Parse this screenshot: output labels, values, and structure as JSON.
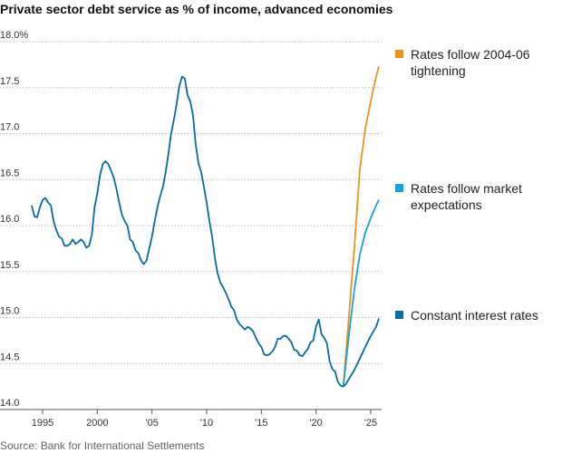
{
  "chart_data": {
    "type": "line",
    "title": "Private sector debt service as % of income, advanced economies",
    "source": "Source: Bank for International Settlements",
    "xlim": [
      1991.1,
      2026.0
    ],
    "xticks": [
      1995,
      2000,
      {
        "value": 2005,
        "label": "'05"
      },
      {
        "value": 2010,
        "label": "'10"
      },
      {
        "value": 2015,
        "label": "'15"
      },
      {
        "value": 2020,
        "label": "'20"
      },
      {
        "value": 2025,
        "label": "'25"
      }
    ],
    "ylim": [
      14,
      18
    ],
    "yticks": [
      {
        "value": 18,
        "label": "18.0%"
      },
      17.5,
      {
        "value": 17,
        "label": "17.0"
      },
      16.5,
      {
        "value": 16,
        "label": "16.0"
      },
      15.5,
      {
        "value": 15,
        "label": "15.0"
      },
      14.5,
      {
        "value": 14,
        "label": "14.0"
      }
    ],
    "grid": true,
    "series": [
      {
        "name": "Rates follow 2004-06 tightening",
        "color": "#e8951f",
        "x": [
          2022.5,
          2023.0,
          2023.5,
          2024.0,
          2024.5,
          2025.0,
          2025.5,
          2025.75
        ],
        "values": [
          14.25,
          15.0,
          15.75,
          16.6,
          17.05,
          17.35,
          17.62,
          17.73
        ]
      },
      {
        "name": "Rates follow market expectations",
        "color": "#1aa0dc",
        "x": [
          2022.5,
          2023.0,
          2023.5,
          2024.0,
          2024.5,
          2025.0,
          2025.5,
          2025.75
        ],
        "values": [
          14.25,
          14.8,
          15.3,
          15.68,
          15.92,
          16.08,
          16.22,
          16.28
        ]
      },
      {
        "name": "Constant interest rates",
        "color": "#0b6aa2",
        "x": [
          1994.0,
          1994.25,
          1994.5,
          1994.75,
          1995.0,
          1995.25,
          1995.5,
          1995.75,
          1996.0,
          1996.25,
          1996.5,
          1996.75,
          1997.0,
          1997.25,
          1997.5,
          1997.75,
          1998.0,
          1998.25,
          1998.5,
          1998.75,
          1999.0,
          1999.25,
          1999.5,
          1999.75,
          2000.0,
          2000.25,
          2000.5,
          2000.75,
          2001.0,
          2001.25,
          2001.5,
          2001.75,
          2002.0,
          2002.25,
          2002.5,
          2002.75,
          2003.0,
          2003.25,
          2003.5,
          2003.75,
          2004.0,
          2004.25,
          2004.5,
          2004.75,
          2005.0,
          2005.25,
          2005.5,
          2005.75,
          2006.0,
          2006.25,
          2006.5,
          2006.75,
          2007.0,
          2007.25,
          2007.5,
          2007.75,
          2008.0,
          2008.25,
          2008.5,
          2008.75,
          2009.0,
          2009.25,
          2009.5,
          2009.75,
          2010.0,
          2010.25,
          2010.5,
          2010.75,
          2011.0,
          2011.25,
          2011.5,
          2011.75,
          2012.0,
          2012.25,
          2012.5,
          2012.75,
          2013.0,
          2013.25,
          2013.5,
          2013.75,
          2014.0,
          2014.25,
          2014.5,
          2014.75,
          2015.0,
          2015.25,
          2015.5,
          2015.75,
          2016.0,
          2016.25,
          2016.5,
          2016.75,
          2017.0,
          2017.25,
          2017.5,
          2017.75,
          2018.0,
          2018.25,
          2018.5,
          2018.75,
          2019.0,
          2019.25,
          2019.5,
          2019.75,
          2020.0,
          2020.25,
          2020.5,
          2020.75,
          2021.0,
          2021.25,
          2021.5,
          2021.75,
          2022.0,
          2022.25,
          2022.5,
          2022.75,
          2023.0,
          2023.5,
          2024.0,
          2024.5,
          2025.0,
          2025.5,
          2025.75
        ],
        "values": [
          16.22,
          16.1,
          16.09,
          16.2,
          16.28,
          16.3,
          16.25,
          16.22,
          16.05,
          15.95,
          15.88,
          15.86,
          15.78,
          15.78,
          15.8,
          15.85,
          15.8,
          15.82,
          15.85,
          15.82,
          15.76,
          15.78,
          15.9,
          16.2,
          16.35,
          16.55,
          16.67,
          16.7,
          16.67,
          16.6,
          16.52,
          16.4,
          16.25,
          16.12,
          16.05,
          16.0,
          15.85,
          15.82,
          15.73,
          15.7,
          15.62,
          15.58,
          15.62,
          15.75,
          15.88,
          16.05,
          16.2,
          16.32,
          16.42,
          16.58,
          16.78,
          17.0,
          17.15,
          17.32,
          17.52,
          17.62,
          17.6,
          17.42,
          17.35,
          17.2,
          16.88,
          16.68,
          16.58,
          16.42,
          16.25,
          16.05,
          15.88,
          15.65,
          15.48,
          15.38,
          15.33,
          15.27,
          15.2,
          15.12,
          15.08,
          14.98,
          14.93,
          14.9,
          14.87,
          14.9,
          14.88,
          14.85,
          14.78,
          14.72,
          14.68,
          14.6,
          14.59,
          14.6,
          14.63,
          14.68,
          14.77,
          14.77,
          14.8,
          14.8,
          14.77,
          14.73,
          14.65,
          14.64,
          14.59,
          14.58,
          14.62,
          14.66,
          14.73,
          14.75,
          14.9,
          14.98,
          14.82,
          14.78,
          14.72,
          14.52,
          14.44,
          14.41,
          14.3,
          14.26,
          14.25,
          14.28,
          14.33,
          14.43,
          14.55,
          14.68,
          14.8,
          14.9,
          14.99
        ]
      }
    ]
  }
}
